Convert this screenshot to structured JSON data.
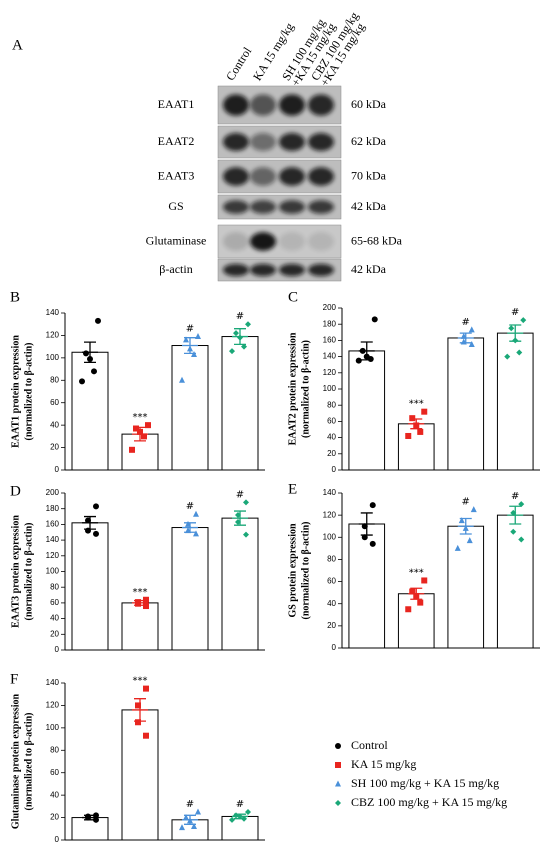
{
  "blot": {
    "panel": "A",
    "lanes": [
      [
        "Control"
      ],
      [
        "KA 15 mg/kg"
      ],
      [
        "SH 100 mg/kg",
        "+KA 15 mg/kg"
      ],
      [
        "CBZ 100 mg/kg",
        "+KA 15 mg/kg"
      ]
    ],
    "rows": [
      {
        "label": "EAAT1",
        "size": "60 kDa"
      },
      {
        "label": "EAAT2",
        "size": "62 kDa"
      },
      {
        "label": "EAAT3",
        "size": "70 kDa"
      },
      {
        "label": "GS",
        "size": "42 kDa"
      },
      {
        "label": "Glutaminase",
        "size": "65-68 kDa"
      },
      {
        "label": "β-actin",
        "size": "42 kDa"
      }
    ]
  },
  "groups": [
    {
      "name": "Control",
      "color": "#000000",
      "marker": "circle"
    },
    {
      "name": "KA 15 mg/kg",
      "color": "#e8251f",
      "marker": "square"
    },
    {
      "name": "SH 100 mg/kg + KA 15 mg/kg",
      "color": "#4a90d9",
      "marker": "triangle"
    },
    {
      "name": "CBZ 100 mg/kg + KA 15 mg/kg",
      "color": "#1aa878",
      "marker": "diamond"
    }
  ],
  "chart_data": [
    {
      "panel": "B",
      "type": "bar",
      "ylabel": [
        "EAAT1 protein expression",
        "(normalized to β-actin)"
      ],
      "ylim": [
        0,
        140
      ],
      "yticks": [
        0,
        20,
        40,
        60,
        80,
        100,
        120,
        140
      ],
      "values": [
        105,
        32,
        111,
        119
      ],
      "errors": [
        9,
        6,
        7,
        7
      ],
      "points": [
        [
          133,
          104,
          99,
          88,
          79
        ],
        [
          40,
          37,
          34,
          30,
          18
        ],
        [
          119,
          116,
          108,
          103,
          80
        ],
        [
          130,
          122,
          118,
          110,
          106
        ]
      ],
      "annotations": [
        null,
        "***",
        "#",
        "#"
      ]
    },
    {
      "panel": "C",
      "type": "bar",
      "ylabel": [
        "EAAT2 protein expression",
        "(normalized to β-actin)"
      ],
      "ylim": [
        0,
        200
      ],
      "yticks": [
        0,
        20,
        40,
        60,
        80,
        100,
        120,
        140,
        160,
        180,
        200
      ],
      "values": [
        147,
        57,
        163,
        169
      ],
      "errors": [
        11,
        6,
        6,
        10
      ],
      "points": [
        [
          186,
          147,
          140,
          137,
          135
        ],
        [
          72,
          64,
          55,
          47,
          42
        ],
        [
          173,
          165,
          158,
          155
        ],
        [
          185,
          175,
          160,
          145,
          140
        ]
      ],
      "annotations": [
        null,
        "***",
        "#",
        "#"
      ]
    },
    {
      "panel": "D",
      "type": "bar",
      "ylabel": [
        "EAAT3 protein expression",
        "(normalized to β-actin)"
      ],
      "ylim": [
        0,
        200
      ],
      "yticks": [
        0,
        20,
        40,
        60,
        80,
        100,
        120,
        140,
        160,
        180,
        200
      ],
      "values": [
        162,
        60,
        156,
        168
      ],
      "errors": [
        8,
        3,
        6,
        9
      ],
      "points": [
        [
          183,
          165,
          152,
          148
        ],
        [
          64,
          61,
          59,
          56
        ],
        [
          173,
          160,
          152,
          148
        ],
        [
          188,
          172,
          163,
          147
        ]
      ],
      "annotations": [
        null,
        "***",
        "#",
        "#"
      ]
    },
    {
      "panel": "E",
      "type": "bar",
      "ylabel": [
        "GS protein expression",
        "(normalized to β-actin)"
      ],
      "ylim": [
        0,
        140
      ],
      "yticks": [
        0,
        20,
        40,
        60,
        80,
        100,
        120,
        140
      ],
      "values": [
        112,
        49,
        110,
        120
      ],
      "errors": [
        10,
        5,
        7,
        8
      ],
      "points": [
        [
          129,
          110,
          100,
          94
        ],
        [
          61,
          51,
          47,
          41,
          35
        ],
        [
          125,
          115,
          108,
          97,
          90
        ],
        [
          130,
          122,
          105,
          98
        ]
      ],
      "annotations": [
        null,
        "***",
        "#",
        "#"
      ]
    },
    {
      "panel": "F",
      "type": "bar",
      "ylabel": [
        "Glutaminase protein expression",
        "(normalized to β-actin)"
      ],
      "ylim": [
        0,
        140
      ],
      "yticks": [
        0,
        20,
        40,
        60,
        80,
        100,
        120,
        140
      ],
      "values": [
        20,
        116,
        18,
        21
      ],
      "errors": [
        2,
        10,
        4,
        2
      ],
      "points": [
        [
          22,
          21,
          20,
          18
        ],
        [
          135,
          120,
          105,
          93
        ],
        [
          25,
          20,
          17,
          12,
          11
        ],
        [
          25,
          22,
          21,
          19,
          18
        ]
      ],
      "annotations": [
        null,
        "***",
        "#",
        "#"
      ]
    }
  ]
}
